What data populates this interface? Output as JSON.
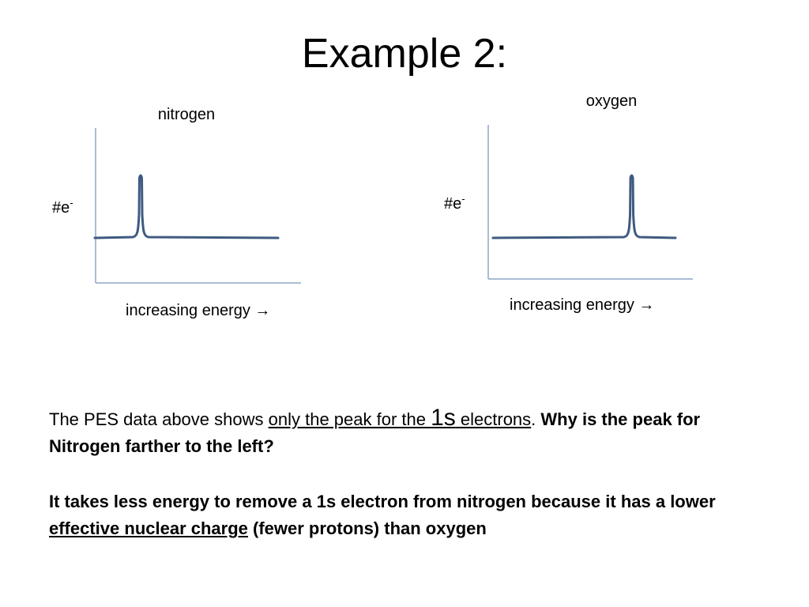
{
  "slide": {
    "title": "Example 2:",
    "question": {
      "t1": "The PES data above shows ",
      "underlined": "only the peak for the ",
      "big": "1s",
      "underlined2": " electrons",
      "t2": ".  ",
      "bold": "Why is the peak for Nitrogen farther to the left?"
    },
    "answer": {
      "t1": "It takes less energy to remove a 1s electron from nitrogen because it has a lower ",
      "underlined": "effective nuclear charge",
      "t2": " (fewer  protons) than oxygen"
    }
  },
  "colors": {
    "axis": "#8fa6c9",
    "line": "#3f5a80"
  },
  "chart_data": [
    {
      "type": "line",
      "title": "nitrogen",
      "xlabel": "increasing energy →",
      "ylabel_base": "#e",
      "ylabel_sup": "-",
      "peak_position": 0.25
    },
    {
      "type": "line",
      "title": "oxygen",
      "xlabel": "increasing energy →",
      "ylabel_base": "#e",
      "ylabel_sup": "-",
      "peak_position": 0.76
    }
  ]
}
